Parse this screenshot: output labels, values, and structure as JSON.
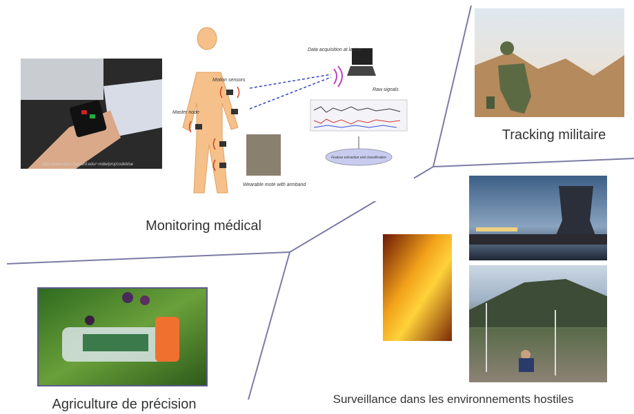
{
  "panels": [
    {
      "label": "Monitoring médical",
      "annotations": [
        "Data acquisition at laptop",
        "Motion sensors",
        "Master node",
        "Raw signals",
        "Feature extraction and classification",
        "Wearable mote with armband",
        "http://www.eecs.harvard.edu/~mdw/proj/codeblue"
      ]
    },
    {
      "label": "Tracking militaire"
    },
    {
      "label": "Agriculture de précision"
    },
    {
      "label": "Surveillance dans les environnements hostiles"
    }
  ]
}
